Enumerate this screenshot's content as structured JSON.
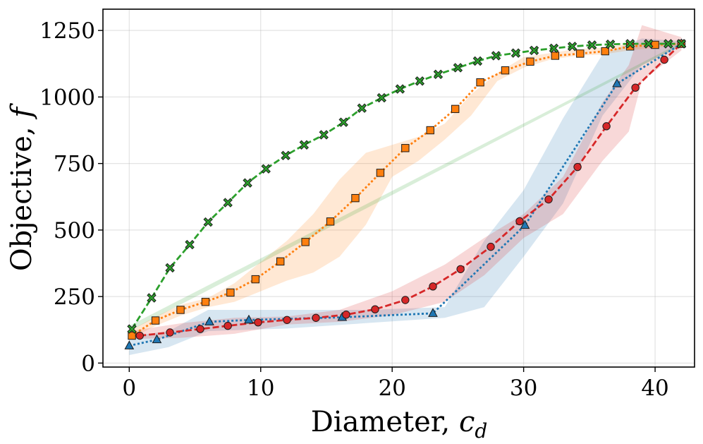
{
  "chart_data": {
    "type": "line",
    "title": "",
    "xlabel_text": "Diameter, ",
    "xlabel_math": "c",
    "xlabel_sub": "d",
    "ylabel_text": "Objective, ",
    "ylabel_math": "f",
    "xlim": [
      -2,
      43
    ],
    "ylim": [
      -15,
      1330
    ],
    "grid": true,
    "x_ticks": [
      0,
      10,
      20,
      30,
      40
    ],
    "y_ticks": [
      0,
      250,
      500,
      750,
      1000,
      1250
    ],
    "x_tick_labels": [
      "0",
      "10",
      "20",
      "30",
      "40"
    ],
    "y_tick_labels": [
      "0",
      "250",
      "500",
      "750",
      "1000",
      "1250"
    ],
    "series": [
      {
        "name": "green",
        "color": "#2ca02c",
        "marker": "x",
        "linestyle": "dashed",
        "band_x": [
          0,
          42
        ],
        "band_lo": [
          120,
          1195
        ],
        "band_hi": [
          140,
          1205
        ],
        "x": [
          0.2,
          1.7,
          3.1,
          4.6,
          6.0,
          7.5,
          9.0,
          10.4,
          11.9,
          13.3,
          14.8,
          16.3,
          17.7,
          19.2,
          20.6,
          22.1,
          23.5,
          25.0,
          26.5,
          27.9,
          29.4,
          30.8,
          32.3,
          33.7,
          35.2,
          36.6,
          38.1,
          39.5,
          41.0,
          42.0
        ],
        "y": [
          128,
          245,
          358,
          445,
          530,
          603,
          677,
          730,
          780,
          820,
          858,
          905,
          958,
          997,
          1030,
          1060,
          1085,
          1110,
          1135,
          1155,
          1165,
          1175,
          1183,
          1190,
          1195,
          1198,
          1200,
          1200,
          1200,
          1200
        ]
      },
      {
        "name": "orange",
        "color": "#ff7f0e",
        "marker": "s",
        "linestyle": "dotted",
        "band_x": [
          0,
          2,
          4,
          6,
          8,
          10,
          12,
          14,
          16,
          18,
          20,
          22,
          24,
          26,
          28,
          30,
          32,
          34,
          36,
          38,
          40,
          42
        ],
        "band_lo": [
          90,
          140,
          180,
          210,
          230,
          270,
          310,
          340,
          400,
          520,
          700,
          760,
          840,
          930,
          1060,
          1110,
          1140,
          1155,
          1160,
          1175,
          1185,
          1195
        ],
        "band_hi": [
          120,
          175,
          220,
          245,
          300,
          380,
          460,
          560,
          690,
          790,
          820,
          850,
          900,
          1010,
          1090,
          1150,
          1165,
          1180,
          1185,
          1200,
          1205,
          1205
        ],
        "x": [
          0.2,
          2.0,
          3.9,
          5.8,
          7.7,
          9.6,
          11.5,
          13.4,
          15.3,
          17.2,
          19.1,
          21.0,
          22.9,
          24.8,
          26.7,
          28.6,
          30.5,
          32.4,
          34.3,
          36.2,
          38.1,
          40.0,
          42.0
        ],
        "y": [
          103,
          160,
          200,
          230,
          265,
          315,
          382,
          455,
          532,
          620,
          715,
          808,
          875,
          955,
          1055,
          1100,
          1133,
          1155,
          1163,
          1172,
          1190,
          1196,
          1200
        ]
      },
      {
        "name": "red",
        "color": "#d62728",
        "marker": "o",
        "linestyle": "dashed",
        "band_x": [
          0,
          4,
          8,
          12,
          16,
          20,
          24,
          27,
          30,
          33,
          36,
          38,
          39,
          42
        ],
        "band_lo": [
          90,
          95,
          110,
          145,
          155,
          180,
          230,
          330,
          470,
          560,
          760,
          870,
          1060,
          1175
        ],
        "band_hi": [
          120,
          150,
          170,
          175,
          200,
          270,
          370,
          470,
          560,
          700,
          980,
          1120,
          1270,
          1225
        ],
        "x": [
          0.8,
          3.1,
          5.4,
          7.5,
          9.8,
          12.0,
          14.2,
          16.5,
          18.7,
          21.0,
          23.1,
          25.2,
          27.5,
          29.7,
          31.9,
          34.1,
          36.3,
          38.5,
          40.7,
          42.0
        ],
        "y": [
          103,
          115,
          128,
          140,
          153,
          162,
          170,
          182,
          202,
          237,
          288,
          353,
          437,
          533,
          615,
          737,
          890,
          1035,
          1140,
          1200
        ]
      },
      {
        "name": "blue",
        "color": "#1f77b4",
        "marker": "^",
        "linestyle": "dotted",
        "band_x": [
          0,
          3,
          6,
          12,
          18,
          24,
          27,
          30,
          33,
          36,
          39,
          42
        ],
        "band_lo": [
          30,
          60,
          120,
          130,
          150,
          170,
          210,
          400,
          600,
          930,
          1120,
          1190
        ],
        "band_hi": [
          100,
          120,
          200,
          200,
          200,
          210,
          460,
          650,
          920,
          1160,
          1220,
          1210
        ],
        "x": [
          0,
          2.1,
          6.1,
          9.1,
          16.2,
          23.1,
          30.1,
          37.1,
          42.0
        ],
        "y": [
          65,
          88,
          155,
          162,
          172,
          187,
          518,
          1050,
          1200
        ]
      }
    ]
  }
}
